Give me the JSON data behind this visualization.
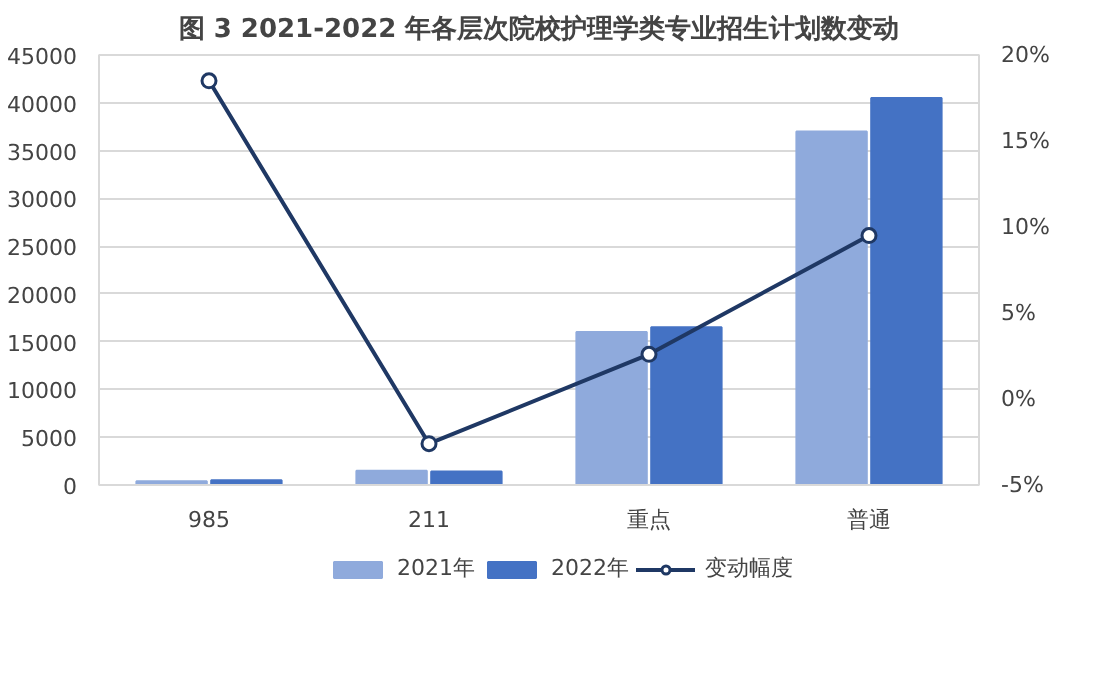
{
  "chart_data": {
    "type": "bar",
    "title": "图 3 2021-2022 年各层次院校护理学类专业招生计划数变动",
    "categories": [
      "985",
      "211",
      "重点",
      "普通"
    ],
    "series": [
      {
        "name": "2021年",
        "color": "#8faadc",
        "values": [
          400,
          1500,
          16000,
          37000
        ]
      },
      {
        "name": "2022年",
        "color": "#4472c4",
        "values": [
          500,
          1400,
          16500,
          40500
        ]
      },
      {
        "name": "变动幅度",
        "type": "line",
        "axis": "y2",
        "color": "#1f3864",
        "marker": "circle",
        "values": [
          18.5,
          -2.6,
          2.6,
          9.5
        ]
      }
    ],
    "ylim": [
      0,
      45000
    ],
    "yticks": [
      0,
      5000,
      10000,
      15000,
      20000,
      25000,
      30000,
      35000,
      40000,
      45000
    ],
    "y2lim": [
      -5,
      20
    ],
    "y2ticks": [
      {
        "value": -5,
        "label": "-5%"
      },
      {
        "value": 0,
        "label": "0%"
      },
      {
        "value": 5,
        "label": "5%"
      },
      {
        "value": 10,
        "label": "10%"
      },
      {
        "value": 15,
        "label": "15%"
      },
      {
        "value": 20,
        "label": "20%"
      }
    ],
    "grid": "y",
    "legend": "bottom"
  }
}
